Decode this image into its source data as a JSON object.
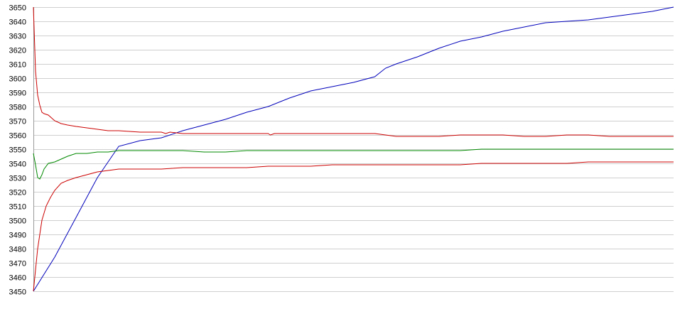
{
  "chart_data": {
    "type": "line",
    "title": "",
    "xlabel": "",
    "ylabel": "",
    "grid": true,
    "ylim": [
      3450,
      3650
    ],
    "y_ticks": [
      3450,
      3460,
      3470,
      3480,
      3490,
      3500,
      3510,
      3520,
      3530,
      3540,
      3550,
      3560,
      3570,
      3580,
      3590,
      3600,
      3610,
      3620,
      3630,
      3640,
      3650
    ],
    "y_tick_labels": [
      "3450",
      "3460",
      "3470",
      "3480",
      "3490",
      "3500",
      "3510",
      "3520",
      "3530",
      "3540",
      "3550",
      "3560",
      "3570",
      "3580",
      "3590",
      "3600",
      "3610",
      "3620",
      "3630",
      "3640",
      "3650"
    ],
    "xlim": [
      0,
      300
    ],
    "series": [
      {
        "color": "#0000bb",
        "x": [
          0,
          10,
          20,
          30,
          40,
          50,
          60,
          70,
          80,
          90,
          100,
          110,
          120,
          130,
          140,
          150,
          160,
          165,
          170,
          180,
          190,
          200,
          210,
          220,
          230,
          240,
          250,
          260,
          270,
          280,
          290,
          300
        ],
        "y": [
          3450,
          3474,
          3502,
          3530,
          3552,
          3556,
          3558,
          3563,
          3567,
          3571,
          3576,
          3580,
          3586,
          3591,
          3594,
          3597,
          3601,
          3607,
          3610,
          3615,
          3621,
          3626,
          3629,
          3633,
          3636,
          3639,
          3640,
          3641,
          3643,
          3645,
          3647,
          3650
        ]
      },
      {
        "color": "#cc0000",
        "x": [
          0,
          1,
          2,
          3,
          4,
          5,
          7,
          10,
          13,
          16,
          20,
          25,
          30,
          35,
          40,
          50,
          60,
          62,
          64,
          70,
          80,
          90,
          100,
          110,
          111,
          113,
          120,
          130,
          140,
          150,
          160,
          165,
          170,
          180,
          190,
          200,
          210,
          220,
          230,
          240,
          250,
          260,
          270,
          280,
          290,
          300
        ],
        "y": [
          3650,
          3605,
          3588,
          3581,
          3576,
          3575,
          3574,
          3570,
          3568,
          3567,
          3566,
          3565,
          3564,
          3563,
          3563,
          3562,
          3562,
          3561,
          3562,
          3561,
          3561,
          3561,
          3561,
          3561,
          3560,
          3561,
          3561,
          3561,
          3561,
          3561,
          3561,
          3560,
          3559,
          3559,
          3559,
          3560,
          3560,
          3560,
          3559,
          3559,
          3560,
          3560,
          3559,
          3559,
          3559,
          3559
        ]
      },
      {
        "color": "#008800",
        "x": [
          0,
          1,
          2,
          3,
          4,
          5,
          7,
          10,
          13,
          16,
          20,
          25,
          30,
          35,
          40,
          50,
          60,
          70,
          80,
          90,
          100,
          110,
          120,
          130,
          140,
          150,
          160,
          170,
          180,
          190,
          200,
          210,
          220,
          230,
          240,
          250,
          260,
          270,
          280,
          290,
          300
        ],
        "y": [
          3547,
          3539,
          3530,
          3529,
          3532,
          3536,
          3540,
          3541,
          3543,
          3545,
          3547,
          3547,
          3548,
          3548,
          3549,
          3549,
          3549,
          3549,
          3548,
          3548,
          3549,
          3549,
          3549,
          3549,
          3549,
          3549,
          3549,
          3549,
          3549,
          3549,
          3549,
          3550,
          3550,
          3550,
          3550,
          3550,
          3550,
          3550,
          3550,
          3550,
          3550
        ]
      },
      {
        "color": "#cc0000",
        "x": [
          0,
          2,
          4,
          6,
          8,
          10,
          13,
          16,
          20,
          25,
          30,
          35,
          40,
          50,
          60,
          70,
          80,
          90,
          100,
          110,
          120,
          130,
          140,
          150,
          160,
          170,
          180,
          190,
          200,
          210,
          220,
          230,
          240,
          250,
          260,
          270,
          280,
          290,
          300
        ],
        "y": [
          3450,
          3480,
          3500,
          3510,
          3516,
          3521,
          3526,
          3528,
          3530,
          3532,
          3534,
          3535,
          3536,
          3536,
          3536,
          3537,
          3537,
          3537,
          3537,
          3538,
          3538,
          3538,
          3539,
          3539,
          3539,
          3539,
          3539,
          3539,
          3539,
          3540,
          3540,
          3540,
          3540,
          3540,
          3541,
          3541,
          3541,
          3541,
          3541
        ]
      }
    ]
  }
}
